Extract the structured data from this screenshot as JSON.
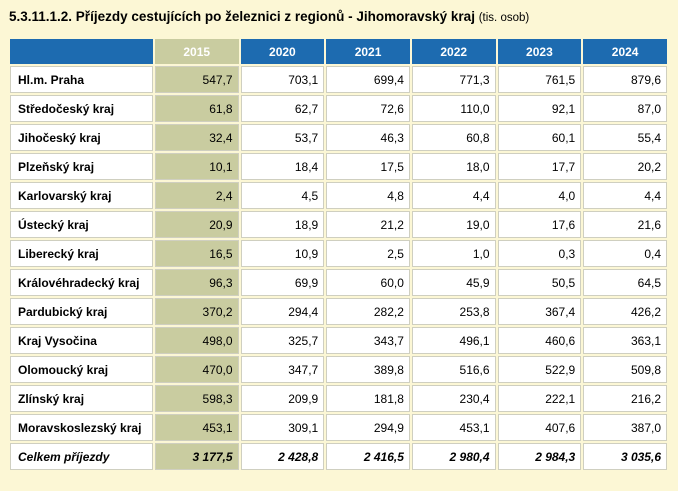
{
  "title": "5.3.11.1.2. Příjezdy cestujících po železnici z regionů - Jihomoravský kraj",
  "unit": "(tis. osob)",
  "columns": [
    "2015",
    "2020",
    "2021",
    "2022",
    "2023",
    "2024"
  ],
  "rows": [
    {
      "name": "Hl.m. Praha",
      "values": [
        "547,7",
        "703,1",
        "699,4",
        "771,3",
        "761,5",
        "879,6"
      ]
    },
    {
      "name": "Středočeský kraj",
      "values": [
        "61,8",
        "62,7",
        "72,6",
        "110,0",
        "92,1",
        "87,0"
      ]
    },
    {
      "name": "Jihočeský kraj",
      "values": [
        "32,4",
        "53,7",
        "46,3",
        "60,8",
        "60,1",
        "55,4"
      ]
    },
    {
      "name": "Plzeňský kraj",
      "values": [
        "10,1",
        "18,4",
        "17,5",
        "18,0",
        "17,7",
        "20,2"
      ]
    },
    {
      "name": "Karlovarský kraj",
      "values": [
        "2,4",
        "4,5",
        "4,8",
        "4,4",
        "4,0",
        "4,4"
      ]
    },
    {
      "name": "Ústecký kraj",
      "values": [
        "20,9",
        "18,9",
        "21,2",
        "19,0",
        "17,6",
        "21,6"
      ]
    },
    {
      "name": "Liberecký kraj",
      "values": [
        "16,5",
        "10,9",
        "2,5",
        "1,0",
        "0,3",
        "0,4"
      ]
    },
    {
      "name": "Královéhradecký kraj",
      "values": [
        "96,3",
        "69,9",
        "60,0",
        "45,9",
        "50,5",
        "64,5"
      ]
    },
    {
      "name": "Pardubický kraj",
      "values": [
        "370,2",
        "294,4",
        "282,2",
        "253,8",
        "367,4",
        "426,2"
      ]
    },
    {
      "name": "Kraj Vysočina",
      "values": [
        "498,0",
        "325,7",
        "343,7",
        "496,1",
        "460,6",
        "363,1"
      ]
    },
    {
      "name": "Olomoucký kraj",
      "values": [
        "470,0",
        "347,7",
        "389,8",
        "516,6",
        "522,9",
        "509,8"
      ]
    },
    {
      "name": "Zlínský kraj",
      "values": [
        "598,3",
        "209,9",
        "181,8",
        "230,4",
        "222,1",
        "216,2"
      ]
    },
    {
      "name": "Moravskoslezský kraj",
      "values": [
        "453,1",
        "309,1",
        "294,9",
        "453,1",
        "407,6",
        "387,0"
      ]
    }
  ],
  "total": {
    "name": "Celkem příjezdy",
    "values": [
      "3 177,5",
      "2 428,8",
      "2 416,5",
      "2 980,4",
      "2 984,3",
      "3 035,6"
    ]
  },
  "colors": {
    "header_blue": "#1d6bb0",
    "highlight_column": "#c9cca0",
    "page_background": "#fcf7d5"
  }
}
